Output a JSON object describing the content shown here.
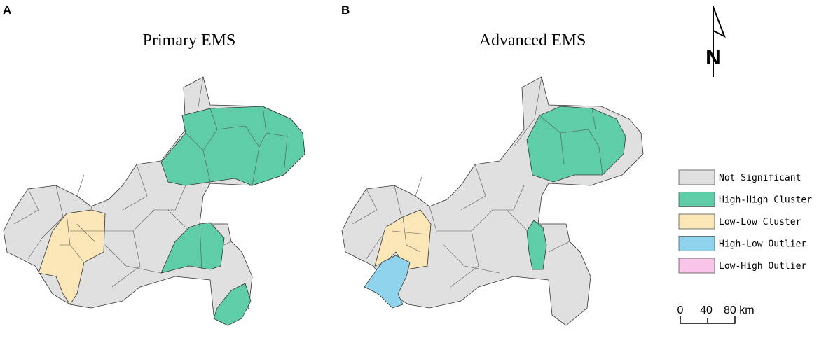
{
  "panels": [
    {
      "letter": "A",
      "title": "Primary EMS"
    },
    {
      "letter": "B",
      "title": "Advanced EMS"
    }
  ],
  "north_arrow": {
    "label": "N"
  },
  "legend": {
    "items": [
      {
        "label": "Not Significant",
        "color": "#e0e0e0"
      },
      {
        "label": "High-High Cluster",
        "color": "#5fcea8"
      },
      {
        "label": "Low-Low Cluster",
        "color": "#fbe6b8"
      },
      {
        "label": "High-Low Outlier",
        "color": "#8fd4ec"
      },
      {
        "label": "Low-High Outlier",
        "color": "#f9c6ea"
      }
    ]
  },
  "scale_bar": {
    "labels": [
      "0",
      "40",
      "80 km"
    ]
  }
}
